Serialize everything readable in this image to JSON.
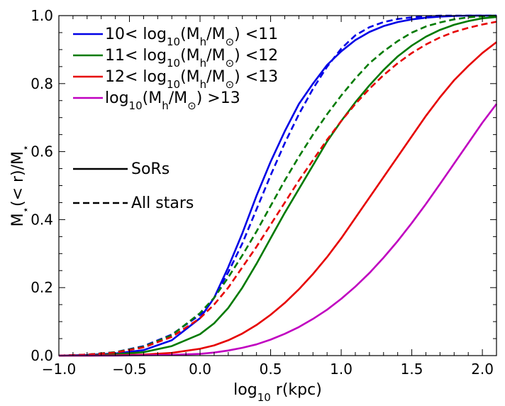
{
  "chart_data": {
    "type": "line",
    "title": "",
    "xlabel": {
      "main": "log",
      "sub": "10",
      "rest": " r(kpc)"
    },
    "ylabel": {
      "a": "M",
      "star1": "⋆",
      "b": "(< r)/M",
      "star2": "⋆"
    },
    "xlim": [
      -1.0,
      2.1
    ],
    "ylim": [
      0.0,
      1.0
    ],
    "xticks": [
      -1.0,
      -0.5,
      0.0,
      0.5,
      1.0,
      1.5,
      2.0
    ],
    "xtick_labels": [
      "−1.0",
      "−0.5",
      "0.0",
      "0.5",
      "1.0",
      "1.5",
      "2.0"
    ],
    "yticks": [
      0.0,
      0.2,
      0.4,
      0.6,
      0.8,
      1.0
    ],
    "ytick_labels": [
      "0.0",
      "0.2",
      "0.4",
      "0.6",
      "0.8",
      "1.0"
    ],
    "grid": false,
    "legend_position": "top-left",
    "line_styles": [
      {
        "style": "solid",
        "label": "SoRs",
        "color": "#000000"
      },
      {
        "style": "dashed",
        "label": "All stars",
        "color": "#000000"
      }
    ],
    "series": [
      {
        "name": "10< log10(Mh/M⊙) <11",
        "legend": {
          "pre": "10< log",
          "sub1": "10",
          "mid": "(M",
          "sub2": "h",
          "mid2": "/M",
          "sub3": "⊙",
          "post": ") <11"
        },
        "color": "#0000e6",
        "solid": {
          "x": [
            -1.0,
            -0.8,
            -0.6,
            -0.4,
            -0.2,
            0.0,
            0.1,
            0.2,
            0.3,
            0.4,
            0.5,
            0.6,
            0.7,
            0.8,
            0.9,
            1.0,
            1.1,
            1.2,
            1.3,
            1.4,
            1.5,
            1.6,
            1.7,
            1.8,
            1.9,
            2.0,
            2.1
          ],
          "y": [
            0.0,
            0.002,
            0.006,
            0.016,
            0.045,
            0.11,
            0.17,
            0.26,
            0.36,
            0.47,
            0.57,
            0.66,
            0.74,
            0.8,
            0.855,
            0.895,
            0.928,
            0.952,
            0.969,
            0.981,
            0.989,
            0.994,
            0.997,
            0.999,
            1.0,
            1.0,
            1.0
          ]
        },
        "dashed": {
          "x": [
            -1.0,
            -0.8,
            -0.6,
            -0.4,
            -0.2,
            0.0,
            0.1,
            0.2,
            0.3,
            0.4,
            0.5,
            0.6,
            0.7,
            0.8,
            0.9,
            1.0,
            1.1,
            1.2,
            1.3,
            1.4,
            1.5,
            1.6,
            1.7,
            1.8,
            1.9,
            2.0,
            2.1
          ],
          "y": [
            0.0,
            0.003,
            0.01,
            0.028,
            0.062,
            0.12,
            0.17,
            0.245,
            0.33,
            0.43,
            0.53,
            0.625,
            0.71,
            0.785,
            0.85,
            0.903,
            0.942,
            0.966,
            0.981,
            0.99,
            0.995,
            0.998,
            1.0,
            1.0,
            1.0,
            1.0,
            1.0
          ]
        }
      },
      {
        "name": "11< log10(Mh/M⊙) <12",
        "legend": {
          "pre": "11< log",
          "sub1": "10",
          "mid": "(M",
          "sub2": "h",
          "mid2": "/M",
          "sub3": "⊙",
          "post": ") <12"
        },
        "color": "#007a00",
        "solid": {
          "x": [
            -1.0,
            -0.8,
            -0.6,
            -0.4,
            -0.2,
            0.0,
            0.1,
            0.2,
            0.3,
            0.4,
            0.5,
            0.6,
            0.7,
            0.8,
            0.9,
            1.0,
            1.1,
            1.2,
            1.3,
            1.4,
            1.5,
            1.6,
            1.7,
            1.8,
            1.9,
            2.0,
            2.1
          ],
          "y": [
            0.0,
            0.001,
            0.004,
            0.01,
            0.028,
            0.063,
            0.095,
            0.14,
            0.2,
            0.27,
            0.345,
            0.42,
            0.49,
            0.56,
            0.63,
            0.69,
            0.745,
            0.795,
            0.84,
            0.88,
            0.912,
            0.938,
            0.958,
            0.973,
            0.984,
            0.992,
            0.996
          ]
        },
        "dashed": {
          "x": [
            -1.0,
            -0.8,
            -0.6,
            -0.4,
            -0.2,
            0.0,
            0.1,
            0.2,
            0.3,
            0.4,
            0.5,
            0.6,
            0.7,
            0.8,
            0.9,
            1.0,
            1.1,
            1.2,
            1.3,
            1.4,
            1.5,
            1.6,
            1.7,
            1.8,
            1.9,
            2.0,
            2.1
          ],
          "y": [
            0.0,
            0.003,
            0.01,
            0.026,
            0.06,
            0.125,
            0.17,
            0.23,
            0.295,
            0.365,
            0.44,
            0.515,
            0.585,
            0.65,
            0.71,
            0.765,
            0.815,
            0.86,
            0.895,
            0.925,
            0.95,
            0.968,
            0.98,
            0.989,
            0.995,
            0.998,
            1.0
          ]
        }
      },
      {
        "name": "12< log10(Mh/M⊙) <13",
        "legend": {
          "pre": "12< log",
          "sub1": "10",
          "mid": "(M",
          "sub2": "h",
          "mid2": "/M",
          "sub3": "⊙",
          "post": ") <13"
        },
        "color": "#e60000",
        "solid": {
          "x": [
            -1.0,
            -0.8,
            -0.6,
            -0.4,
            -0.2,
            0.0,
            0.1,
            0.2,
            0.3,
            0.4,
            0.5,
            0.6,
            0.7,
            0.8,
            0.9,
            1.0,
            1.1,
            1.2,
            1.3,
            1.4,
            1.5,
            1.6,
            1.7,
            1.8,
            1.9,
            2.0,
            2.1
          ],
          "y": [
            0.0,
            0.0,
            0.001,
            0.003,
            0.008,
            0.02,
            0.03,
            0.045,
            0.065,
            0.09,
            0.12,
            0.155,
            0.195,
            0.24,
            0.29,
            0.345,
            0.405,
            0.465,
            0.525,
            0.585,
            0.645,
            0.705,
            0.76,
            0.81,
            0.852,
            0.89,
            0.922
          ]
        },
        "dashed": {
          "x": [
            -1.0,
            -0.8,
            -0.6,
            -0.4,
            -0.2,
            0.0,
            0.1,
            0.2,
            0.3,
            0.4,
            0.5,
            0.6,
            0.7,
            0.8,
            0.9,
            1.0,
            1.1,
            1.2,
            1.3,
            1.4,
            1.5,
            1.6,
            1.7,
            1.8,
            1.9,
            2.0,
            2.1
          ],
          "y": [
            0.0,
            0.003,
            0.009,
            0.024,
            0.055,
            0.11,
            0.15,
            0.2,
            0.26,
            0.32,
            0.385,
            0.45,
            0.515,
            0.575,
            0.635,
            0.69,
            0.74,
            0.785,
            0.825,
            0.86,
            0.89,
            0.915,
            0.936,
            0.952,
            0.964,
            0.974,
            0.982
          ]
        }
      },
      {
        "name": "log10(Mh/M⊙) >13",
        "legend": {
          "pre": "log",
          "sub1": "10",
          "mid": "(M",
          "sub2": "h",
          "mid2": "/M",
          "sub3": "⊙",
          "post": ") >13"
        },
        "color": "#c000c0",
        "solid": {
          "x": [
            -1.0,
            -0.8,
            -0.6,
            -0.4,
            -0.2,
            0.0,
            0.1,
            0.2,
            0.3,
            0.4,
            0.5,
            0.6,
            0.7,
            0.8,
            0.9,
            1.0,
            1.1,
            1.2,
            1.3,
            1.4,
            1.5,
            1.6,
            1.7,
            1.8,
            1.9,
            2.0,
            2.1
          ],
          "y": [
            0.0,
            0.0,
            0.0,
            0.001,
            0.002,
            0.005,
            0.009,
            0.015,
            0.023,
            0.033,
            0.047,
            0.064,
            0.084,
            0.108,
            0.135,
            0.167,
            0.203,
            0.243,
            0.288,
            0.337,
            0.39,
            0.446,
            0.505,
            0.565,
            0.625,
            0.685,
            0.74
          ]
        }
      }
    ]
  }
}
